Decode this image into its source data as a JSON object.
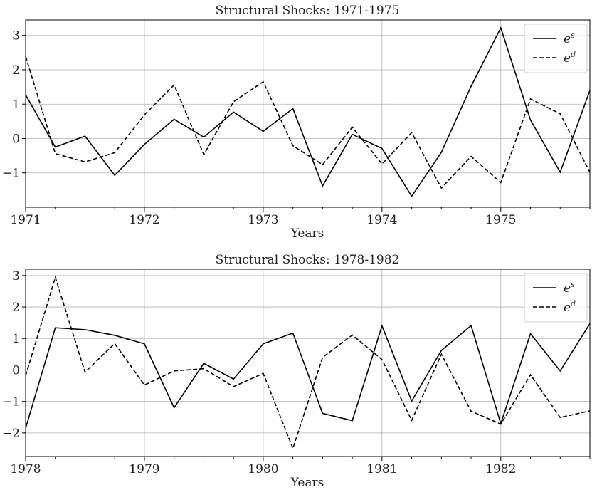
{
  "chart_data": [
    {
      "type": "line",
      "title": "Structural Shocks: 1971-1975",
      "xlabel": "Years",
      "ylabel": "",
      "xlim": [
        1971.0,
        1975.75
      ],
      "ylim": [
        -2.0,
        3.45
      ],
      "x_major_ticks": [
        1971,
        1972,
        1973,
        1974,
        1975
      ],
      "x_tick_labels": [
        "1971",
        "1972",
        "1973",
        "1974",
        "1975"
      ],
      "y_ticks": [
        -1,
        0,
        1,
        2,
        3
      ],
      "y_tick_labels": [
        "−1",
        "0",
        "1",
        "2",
        "3"
      ],
      "grid": true,
      "legend_position": "top-right",
      "x": [
        1971.0,
        1971.25,
        1971.5,
        1971.75,
        1972.0,
        1972.25,
        1972.5,
        1972.75,
        1973.0,
        1973.25,
        1973.5,
        1973.75,
        1974.0,
        1974.25,
        1974.5,
        1974.75,
        1975.0,
        1975.25,
        1975.5,
        1975.75
      ],
      "series": [
        {
          "name": "e",
          "name_sup": "s",
          "style": "solid",
          "color": "#000000",
          "values": [
            1.27,
            -0.25,
            0.07,
            -1.07,
            -0.17,
            0.56,
            0.04,
            0.77,
            0.21,
            0.87,
            -1.38,
            0.12,
            -0.29,
            -1.68,
            -0.4,
            1.52,
            3.22,
            0.54,
            -0.98,
            1.4
          ]
        },
        {
          "name": "e",
          "name_sup": "d",
          "style": "dashed",
          "color": "#000000",
          "values": [
            2.39,
            -0.44,
            -0.68,
            -0.41,
            0.69,
            1.56,
            -0.47,
            1.07,
            1.65,
            -0.21,
            -0.76,
            0.33,
            -0.74,
            0.17,
            -1.44,
            -0.52,
            -1.28,
            1.15,
            0.72,
            -0.98
          ]
        }
      ]
    },
    {
      "type": "line",
      "title": "Structural Shocks: 1978-1982",
      "xlabel": "Years",
      "ylabel": "",
      "xlim": [
        1978.0,
        1982.75
      ],
      "ylim": [
        -2.75,
        3.2
      ],
      "x_major_ticks": [
        1978,
        1979,
        1980,
        1981,
        1982
      ],
      "x_tick_labels": [
        "1978",
        "1979",
        "1980",
        "1981",
        "1982"
      ],
      "y_ticks": [
        -2,
        -1,
        0,
        1,
        2,
        3
      ],
      "y_tick_labels": [
        "−2",
        "−1",
        "0",
        "1",
        "2",
        "3"
      ],
      "grid": true,
      "legend_position": "top-right",
      "x": [
        1978.0,
        1978.25,
        1978.5,
        1978.75,
        1979.0,
        1979.25,
        1979.5,
        1979.75,
        1980.0,
        1980.25,
        1980.5,
        1980.75,
        1981.0,
        1981.25,
        1981.5,
        1981.75,
        1982.0,
        1982.25,
        1982.5,
        1982.75
      ],
      "series": [
        {
          "name": "e",
          "name_sup": "s",
          "style": "solid",
          "color": "#000000",
          "values": [
            -1.85,
            1.34,
            1.28,
            1.1,
            0.83,
            -1.2,
            0.21,
            -0.29,
            0.83,
            1.17,
            -1.38,
            -1.61,
            1.4,
            -0.99,
            0.62,
            1.41,
            -1.7,
            1.15,
            -0.03,
            1.47
          ]
        },
        {
          "name": "e",
          "name_sup": "d",
          "style": "dashed",
          "color": "#000000",
          "values": [
            -0.18,
            2.94,
            -0.07,
            0.84,
            -0.48,
            -0.03,
            0.04,
            -0.53,
            -0.11,
            -2.49,
            0.4,
            1.11,
            0.33,
            -1.6,
            0.5,
            -1.31,
            -1.72,
            -0.15,
            -1.51,
            -1.3
          ]
        }
      ]
    }
  ]
}
